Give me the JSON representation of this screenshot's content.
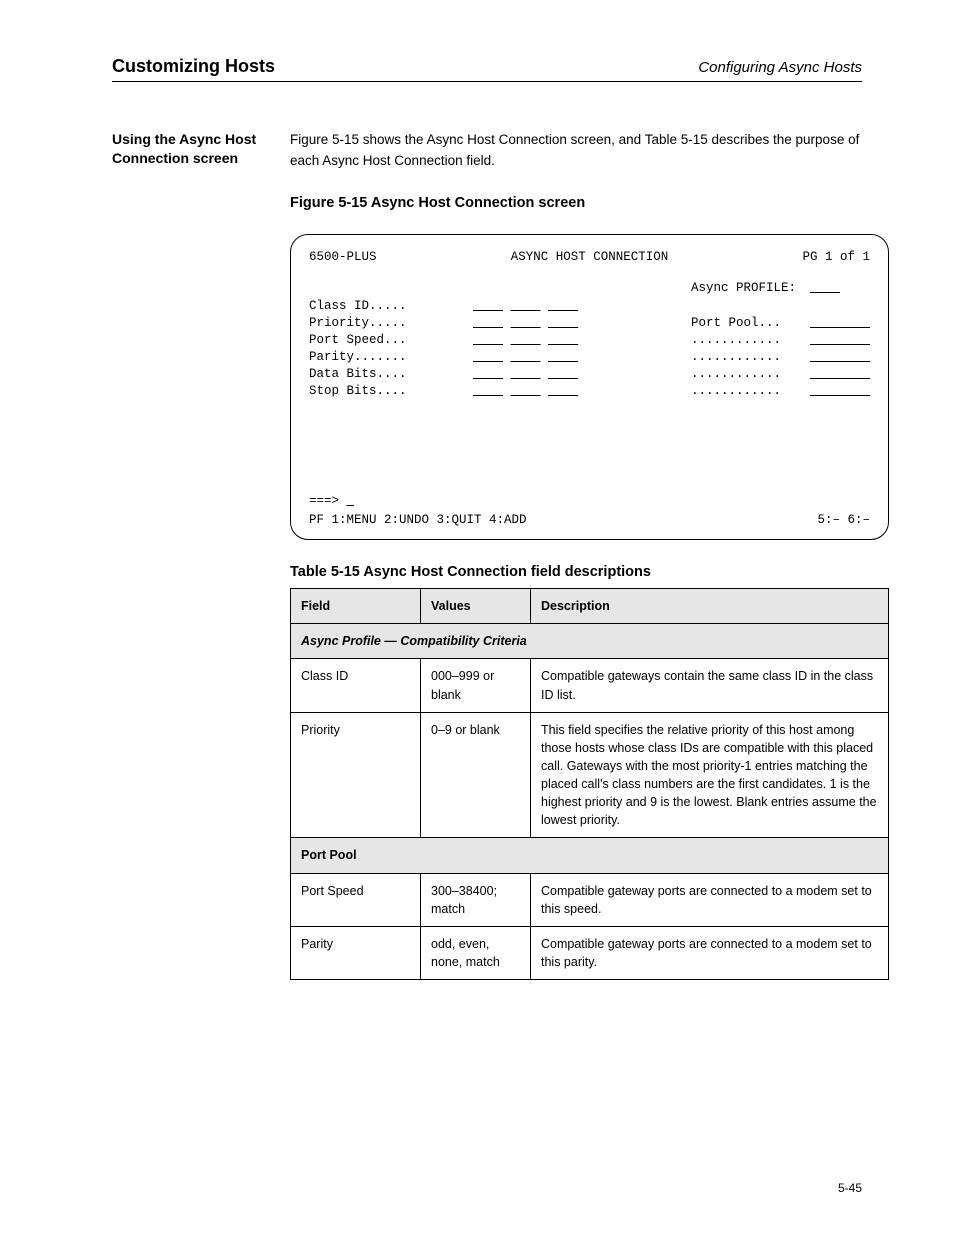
{
  "header": {
    "left": "Customizing Hosts",
    "right": "Configuring Async Hosts"
  },
  "sidebar": {
    "title1": "Using the Async Host Connection screen"
  },
  "intro": {
    "p1": "Figure 5-15 shows the Async Host Connection screen, and Table 5-15 describes the purpose of each Async Host Connection field.",
    "caption_fig": "Figure 5-15   Async Host Connection screen",
    "caption_tbl": "Table 5-15   Async Host Connection field descriptions"
  },
  "screen": {
    "product": "6500-PLUS",
    "title": "ASYNC HOST CONNECTION",
    "page_ref": "PG 1 of 1",
    "rows_left": [
      {
        "label": "Class ID.....",
        "f1": "____",
        "f2": "____",
        "f3": "____"
      },
      {
        "label": "Priority.....",
        "f1": "____",
        "f2": "____",
        "f3": "____"
      },
      {
        "label": "Port Speed...",
        "f1": "____",
        "f2": "____",
        "f3": "____"
      },
      {
        "label": "Parity.......",
        "f1": "____",
        "f2": "____",
        "f3": "____"
      },
      {
        "label": "Data Bits....",
        "f1": "____",
        "f2": "____",
        "f3": "____"
      },
      {
        "label": "Stop Bits....",
        "f1": "____",
        "f2": "____",
        "f3": "____"
      }
    ],
    "rows_right": [
      {
        "label": "Async PROFILE:",
        "f": "____"
      },
      {
        "sp": true
      },
      {
        "label": "Port Pool...",
        "f": "________"
      },
      {
        "label": "............",
        "f": "________"
      },
      {
        "label": "............",
        "f": "________"
      },
      {
        "label": "............",
        "f": "________"
      },
      {
        "label": "............",
        "f": "________"
      }
    ],
    "cmd_label": "===>",
    "cmd_field": "_",
    "pf": {
      "left": "PF 1:MENU   2:UNDO   3:QUIT   4:ADD",
      "right": "5:–     6:–"
    }
  },
  "table": {
    "columns": [
      "Field",
      "Values",
      "Description"
    ],
    "profile_head": "Async Profile — Compatibility Criteria",
    "rows1": [
      {
        "c1": "Class ID",
        "c2": "000–999 or blank",
        "c3": "Compatible gateways contain the same class ID in the class ID list."
      },
      {
        "c1": "Priority",
        "c2": "0–9 or blank",
        "c3": "This field specifies the relative priority of this host among those hosts whose class IDs are compatible with this placed call. Gateways with the most priority-1 entries matching the placed call's class numbers are the first candidates. 1 is the highest priority and 9 is the lowest. Blank entries assume the lowest priority."
      }
    ],
    "rows2_head": "Port Pool",
    "rows2": [
      {
        "c1": "Port Speed",
        "c2": "300–38400; match",
        "c3": "Compatible gateway ports are connected to a modem set to this speed."
      },
      {
        "c1": "Parity",
        "c2": "odd, even, none, match",
        "c3": "Compatible gateway ports are connected to a modem set to this parity."
      }
    ]
  },
  "pagenum": "5-45"
}
